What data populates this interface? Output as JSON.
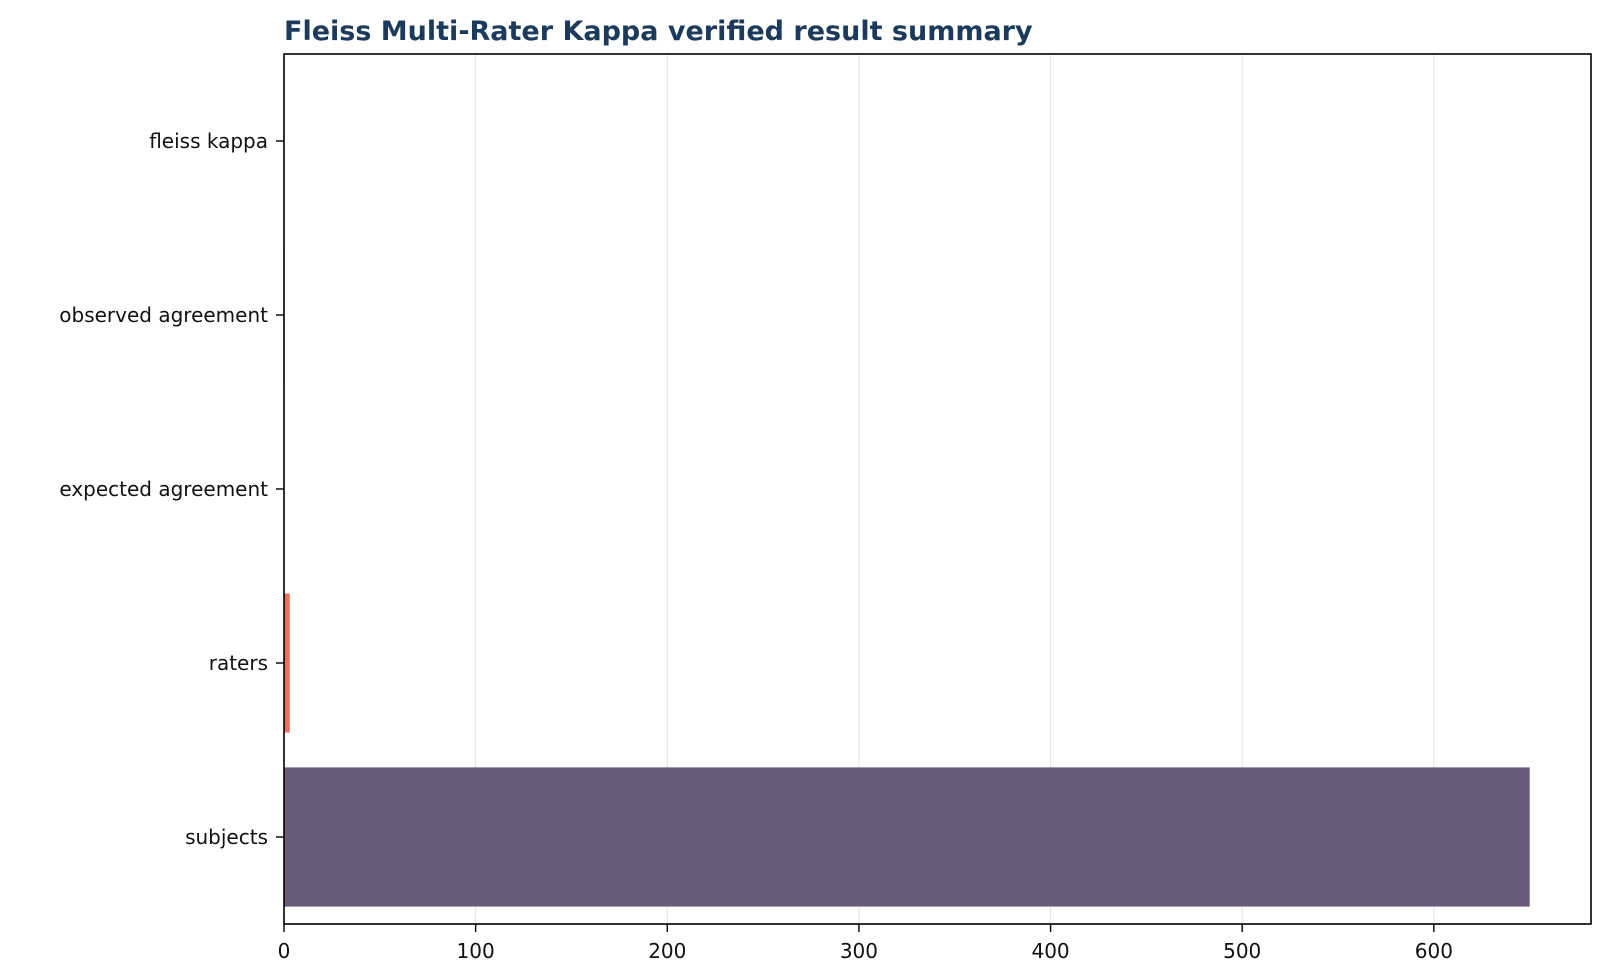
{
  "chart_data": {
    "type": "bar",
    "orientation": "horizontal",
    "title": "Fleiss Multi-Rater Kappa verified result summary",
    "xlabel": "",
    "ylabel": "",
    "categories": [
      "subjects",
      "raters",
      "expected agreement",
      "observed agreement",
      "fleiss kappa"
    ],
    "values": [
      650,
      3,
      0.24,
      0.46,
      0.29
    ],
    "colors": [
      "#6b5b7b",
      "#e8735a",
      "#c8d8e8",
      "#c8d8e8",
      "#c8d8e8"
    ],
    "xlim": [
      0,
      682
    ],
    "xticks": [
      0,
      100,
      200,
      300,
      400,
      500,
      600
    ],
    "grid": "x",
    "legend": "none"
  }
}
